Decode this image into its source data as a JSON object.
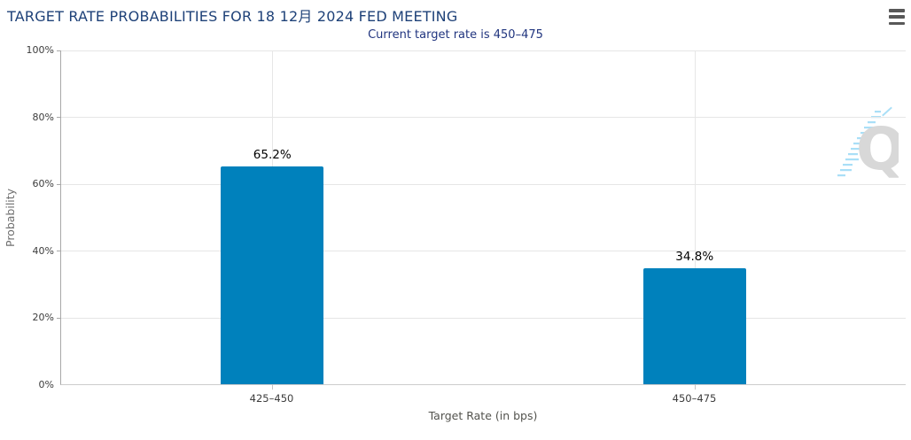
{
  "header": {
    "title": "TARGET RATE PROBABILITIES FOR 18 12月 2024 FED MEETING",
    "subtitle": "Current target rate is 450–475"
  },
  "menu": {
    "icon": "hamburger-icon",
    "tooltip_label": "Chart context menu"
  },
  "watermark": {
    "letter": "Q"
  },
  "colors": {
    "bar": "#0081BC",
    "title": "#1E4178",
    "subtitle": "#21357F",
    "gridline": "#E6E6E6",
    "y_axis_line": "#A8A8A8",
    "x_axis_line": "#CCCCCC",
    "tick_label": "#3C3C3C",
    "x_axis_title": "#53534E",
    "y_axis_title": "#6F6F6F",
    "menu_icon": "#585858",
    "watermark_q": "#D8D8D8",
    "watermark_dash": "#A9DFF7"
  },
  "chart_data": {
    "type": "bar",
    "title": "TARGET RATE PROBABILITIES FOR 18 12月 2024 FED MEETING",
    "subtitle": "Current target rate is 450–475",
    "categories": [
      "425–450",
      "450–475"
    ],
    "values": [
      65.2,
      34.8
    ],
    "value_labels": [
      "65.2%",
      "34.8%"
    ],
    "xlabel": "Target Rate (in bps)",
    "ylabel": "Probability",
    "ylim": [
      0,
      100
    ],
    "yticks": [
      0,
      20,
      40,
      60,
      80,
      100
    ],
    "ytick_labels": [
      "0%",
      "20%",
      "40%",
      "60%",
      "80%",
      "100%"
    ],
    "grid": "horizontal gridlines at yticks + vertical gridline at each category center",
    "legend": "none",
    "bar_color": "#0081BC"
  }
}
